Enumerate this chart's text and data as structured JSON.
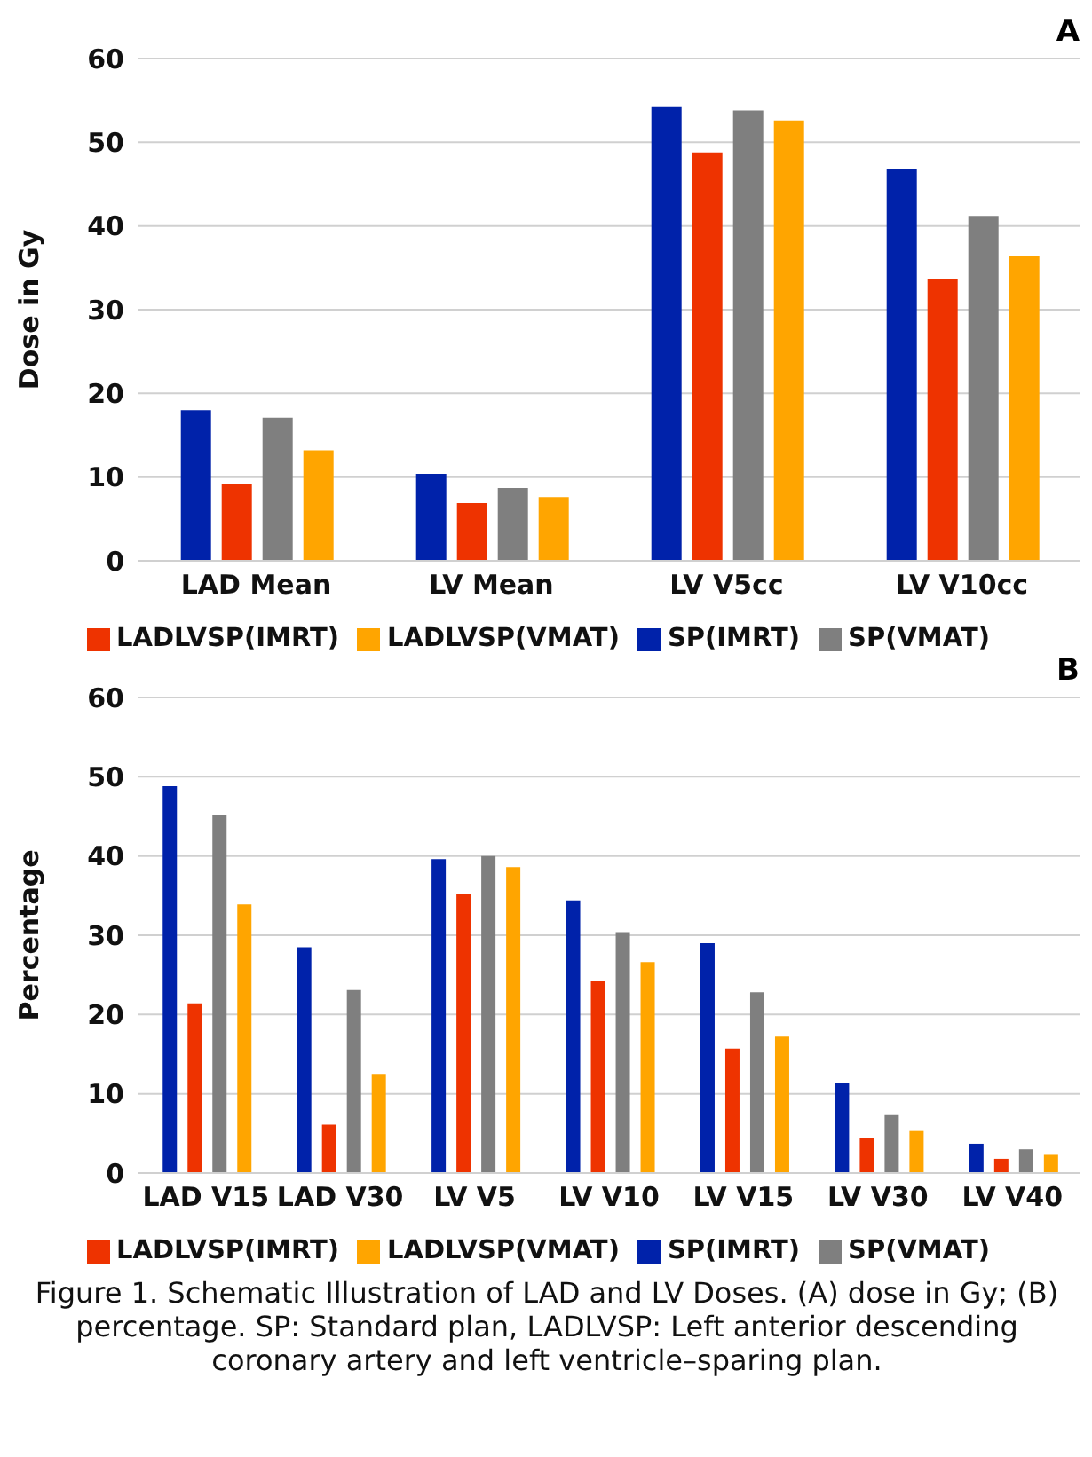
{
  "chart_data": [
    {
      "type": "bar",
      "annotations": [
        "A"
      ],
      "ylabel": "Dose in Gy",
      "categories": [
        "LAD Mean",
        "LV Mean",
        "LV V5cc",
        "LV V10cc"
      ],
      "series": [
        {
          "name": "SP(IMRT)",
          "color": "#0022aa",
          "values": [
            18.0,
            10.4,
            54.2,
            46.8
          ]
        },
        {
          "name": "LADLVSP(IMRT)",
          "color": "#ee3300",
          "values": [
            9.2,
            6.9,
            48.8,
            33.7
          ]
        },
        {
          "name": "SP(VMAT)",
          "color": "#7f7f7f",
          "values": [
            17.1,
            8.7,
            53.8,
            41.2
          ]
        },
        {
          "name": "LADLVSP(VMAT)",
          "color": "#ffa500",
          "values": [
            13.2,
            7.6,
            52.6,
            36.4
          ]
        }
      ],
      "ylim": [
        0,
        60
      ],
      "yticks": [
        0,
        10,
        20,
        30,
        40,
        50,
        60
      ],
      "grid": "y",
      "legend": "bottom"
    },
    {
      "type": "bar",
      "annotations": [
        "B",
        "Figure 1.  Schematic Illustration of LAD and LV Doses. (A) dose in Gy; (B) percentage. SP: Standard plan, LADLVSP: Left anterior descending coronary artery and left ventricle–sparing plan."
      ],
      "ylabel": "Percentage",
      "categories": [
        "LAD V15",
        "LAD V30",
        "LV V5",
        "LV V10",
        "LV V15",
        "LV V30",
        "LV V40"
      ],
      "series": [
        {
          "name": "SP(IMRT)",
          "color": "#0022aa",
          "values": [
            48.8,
            28.5,
            39.6,
            34.4,
            29.0,
            11.4,
            3.7
          ]
        },
        {
          "name": "LADLVSP(IMRT)",
          "color": "#ee3300",
          "values": [
            21.4,
            6.1,
            35.2,
            24.3,
            15.7,
            4.4,
            1.8
          ]
        },
        {
          "name": "SP(VMAT)",
          "color": "#7f7f7f",
          "values": [
            45.2,
            23.1,
            40.0,
            30.4,
            22.8,
            7.3,
            3.0
          ]
        },
        {
          "name": "LADLVSP(VMAT)",
          "color": "#ffa500",
          "values": [
            33.9,
            12.5,
            38.6,
            26.6,
            17.2,
            5.3,
            2.3
          ]
        }
      ],
      "ylim": [
        0,
        60
      ],
      "yticks": [
        0,
        10,
        20,
        30,
        40,
        50,
        60
      ],
      "grid": "y",
      "legend": "bottom"
    }
  ]
}
